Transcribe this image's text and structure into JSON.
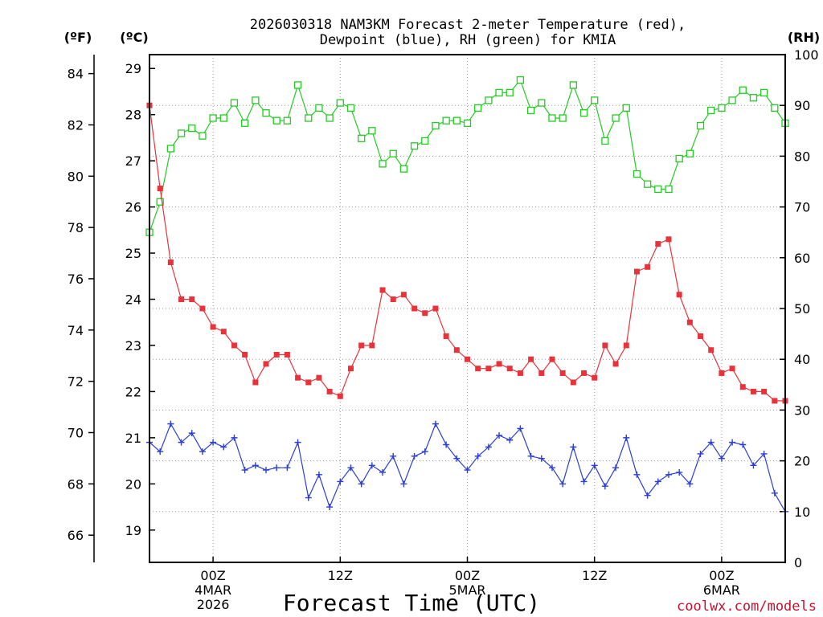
{
  "chart_data": {
    "type": "line",
    "title_line1": "2026030318 NAM3KM Forecast 2-meter Temperature (red),",
    "title_line2": "Dewpoint (blue), RH (green) for KMIA",
    "xlabel": "Forecast Time (UTC)",
    "credit": "coolwx.com/models",
    "unit_f": "(ºF)",
    "unit_c": "(ºC)",
    "unit_rh": "(RH)",
    "colors": {
      "temp": "#e8333a",
      "dew": "#2b3fd6",
      "rh": "#22cc22",
      "credit": "#c8102e"
    },
    "c_ylim": [
      18.3,
      29.3
    ],
    "rh_ylim": [
      0,
      100
    ],
    "f_ticks": [
      "66",
      "68",
      "70",
      "72",
      "74",
      "76",
      "78",
      "80",
      "82",
      "84"
    ],
    "c_ticks": [
      "19",
      "20",
      "21",
      "22",
      "23",
      "24",
      "25",
      "26",
      "27",
      "28",
      "29"
    ],
    "rh_ticks": [
      "0",
      "10",
      "20",
      "30",
      "40",
      "50",
      "60",
      "70",
      "80",
      "90",
      "100"
    ],
    "hour_range": [
      18,
      78
    ],
    "x_ticks": [
      {
        "hour": 24,
        "line1": "00Z",
        "line2": "4MAR",
        "line3": "2026"
      },
      {
        "hour": 36,
        "line1": "12Z",
        "line2": "",
        "line3": ""
      },
      {
        "hour": 48,
        "line1": "00Z",
        "line2": "5MAR",
        "line3": ""
      },
      {
        "hour": 60,
        "line1": "12Z",
        "line2": "",
        "line3": ""
      },
      {
        "hour": 72,
        "line1": "00Z",
        "line2": "6MAR",
        "line3": ""
      }
    ],
    "series": [
      {
        "name": "Temperature",
        "axis": "c",
        "values": [
          28.2,
          26.4,
          24.8,
          24.0,
          24.0,
          23.8,
          23.4,
          23.3,
          23.0,
          22.8,
          22.2,
          22.6,
          22.8,
          22.8,
          22.3,
          22.2,
          22.3,
          22.0,
          21.9,
          22.5,
          23.0,
          23.0,
          24.2,
          24.0,
          24.1,
          23.8,
          23.7,
          23.8,
          23.2,
          22.9,
          22.7,
          22.5,
          22.5,
          22.6,
          22.5,
          22.4,
          22.7,
          22.4,
          22.7,
          22.4,
          22.2,
          22.4,
          22.3,
          23.0,
          22.6,
          23.0,
          24.6,
          24.7,
          25.2,
          25.3,
          24.1,
          23.5,
          23.2,
          22.9,
          22.4,
          22.5,
          22.1,
          22.0,
          22.0,
          21.8,
          21.8
        ]
      },
      {
        "name": "Dewpoint",
        "axis": "c",
        "values": [
          20.9,
          20.7,
          21.3,
          20.9,
          21.1,
          20.7,
          20.9,
          20.8,
          21.0,
          20.3,
          20.4,
          20.3,
          20.35,
          20.35,
          20.9,
          19.7,
          20.2,
          19.5,
          20.05,
          20.35,
          20.0,
          20.4,
          20.25,
          20.6,
          20.0,
          20.6,
          20.7,
          21.3,
          20.85,
          20.55,
          20.3,
          20.6,
          20.8,
          21.05,
          20.95,
          21.2,
          20.6,
          20.55,
          20.35,
          20.0,
          20.8,
          20.05,
          20.4,
          19.95,
          20.35,
          21.0,
          20.2,
          19.75,
          20.05,
          20.2,
          20.25,
          20.0,
          20.65,
          20.9,
          20.55,
          20.9,
          20.85,
          20.4,
          20.65,
          19.8,
          19.4
        ]
      },
      {
        "name": "RH",
        "axis": "rh",
        "values": [
          65,
          71,
          81.5,
          84.5,
          85.5,
          84,
          87.5,
          87.5,
          90.5,
          86.5,
          91,
          88.5,
          87,
          87,
          94,
          87.5,
          89.5,
          87.5,
          90.5,
          89.5,
          83.5,
          85,
          78.5,
          80.5,
          77.5,
          82,
          83,
          86,
          87,
          87,
          86.5,
          89.5,
          91,
          92.5,
          92.5,
          95,
          89,
          90.5,
          87.5,
          87.5,
          94,
          88.5,
          91,
          83,
          87.5,
          89.5,
          76.5,
          74.5,
          73.5,
          73.5,
          79.5,
          80.5,
          86,
          89,
          89.5,
          91,
          93,
          91.5,
          92.5,
          89.5,
          86.5
        ]
      }
    ]
  }
}
